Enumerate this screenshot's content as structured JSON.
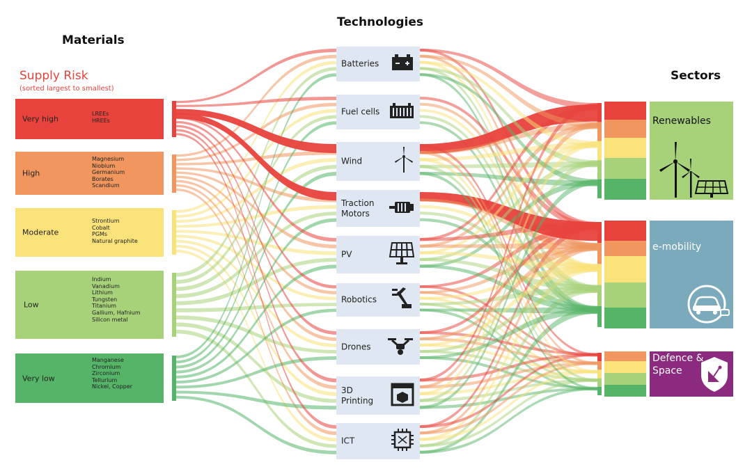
{
  "headers": {
    "materials": "Materials",
    "technologies": "Technologies",
    "sectors": "Sectors"
  },
  "supply_risk": {
    "title": "Supply Risk",
    "subtitle": "(sorted largest to smallest)"
  },
  "risk_levels": [
    {
      "label": "Very high",
      "color": "#e8423c",
      "materials": [
        "LREEs",
        "HREEs"
      ]
    },
    {
      "label": "High",
      "color": "#f0965e",
      "materials": [
        "Magnesium",
        "Niobium",
        "Germanium",
        "Borates",
        "Scandium"
      ]
    },
    {
      "label": "Moderate",
      "color": "#f9e27a",
      "materials": [
        "Strontium",
        "Cobalt",
        "PGMs",
        "Natural graphite"
      ]
    },
    {
      "label": "Low",
      "color": "#a8d27a",
      "materials": [
        "Indium",
        "Vanadium",
        "Lithium",
        "Tungsten",
        "Titanium",
        "Gallium, Hafnium",
        "Silicon metal"
      ]
    },
    {
      "label": "Very low",
      "color": "#55b468",
      "materials": [
        "Manganese",
        "Chromium",
        "Zirconium",
        "Tellurium",
        "Nickel, Copper"
      ]
    }
  ],
  "technologies": [
    {
      "label": "Batteries",
      "icon": "battery-icon"
    },
    {
      "label": "Fuel cells",
      "icon": "fuel-cell-icon"
    },
    {
      "label": "Wind",
      "icon": "wind-turbine-icon"
    },
    {
      "label": "Traction Motors",
      "icon": "motor-icon"
    },
    {
      "label": "PV",
      "icon": "solar-panel-icon"
    },
    {
      "label": "Robotics",
      "icon": "robot-arm-icon"
    },
    {
      "label": "Drones",
      "icon": "drone-icon"
    },
    {
      "label": "3D Printing",
      "icon": "3d-printer-icon"
    },
    {
      "label": "ICT",
      "icon": "chip-icon"
    }
  ],
  "sectors": [
    {
      "label": "Renewables",
      "color": "#a8d27a",
      "icon": "wind-solar-icon"
    },
    {
      "label": "e-mobility",
      "color": "#7aaabb",
      "icon": "electric-car-icon"
    },
    {
      "label": "Defence & Space",
      "color": "#8b2a7e",
      "icon": "satellite-shield-icon"
    }
  ]
}
